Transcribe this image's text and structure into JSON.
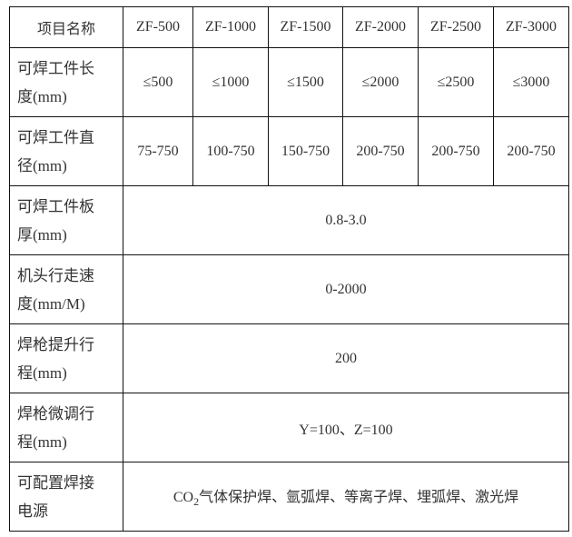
{
  "header": {
    "label": "项目名称",
    "models": [
      "ZF-500",
      "ZF-1000",
      "ZF-1500",
      "ZF-2000",
      "ZF-2500",
      "ZF-3000"
    ]
  },
  "rows": [
    {
      "label": [
        "可焊工件长",
        "度(mm)"
      ],
      "values": [
        "≤500",
        "≤1000",
        "≤1500",
        "≤2000",
        "≤2500",
        "≤3000"
      ]
    },
    {
      "label": [
        "可焊工件直",
        "径(mm)"
      ],
      "values": [
        "75-750",
        "100-750",
        "150-750",
        "200-750",
        "200-750",
        "200-750"
      ]
    },
    {
      "label": [
        "可焊工件板",
        "厚(mm)"
      ],
      "value": "0.8-3.0"
    },
    {
      "label": [
        "机头行走速",
        "度(mm/M)"
      ],
      "value": "0-2000"
    },
    {
      "label": [
        "焊枪提升行",
        "程(mm)"
      ],
      "value": "200"
    },
    {
      "label": [
        "焊枪微调行",
        "程(mm)"
      ],
      "value": "Y=100、Z=100"
    },
    {
      "label": [
        "可配置焊接",
        "电源"
      ],
      "value_prefix": "CO",
      "value_sub": "2",
      "value_rest": "气体保护焊、氩弧焊、等离子焊、埋弧焊、激光焊"
    }
  ]
}
